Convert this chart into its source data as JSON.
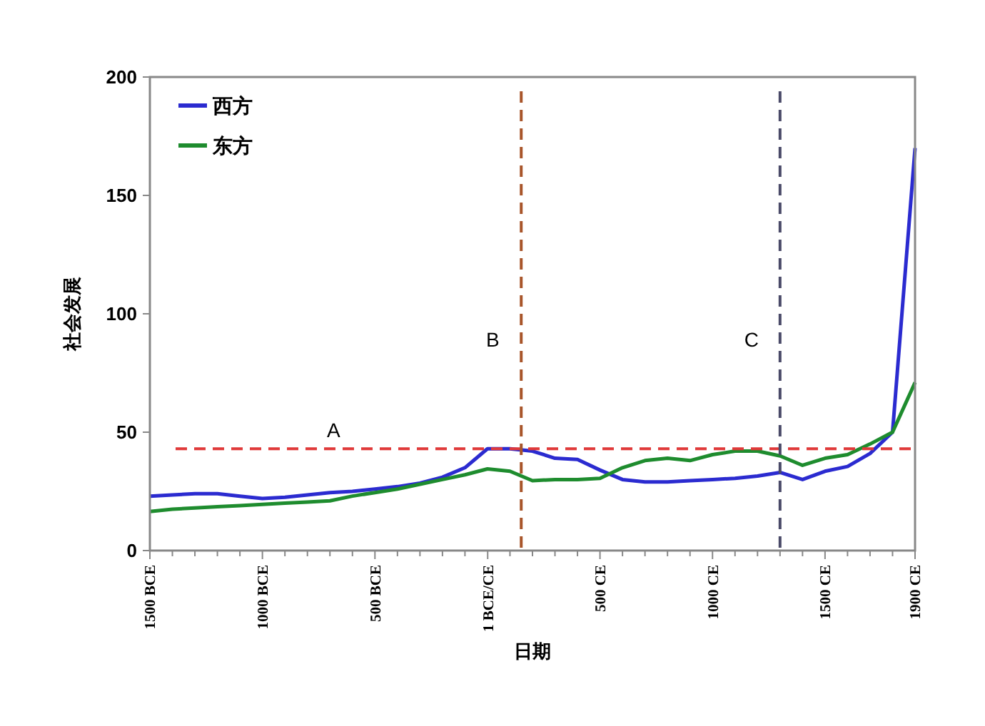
{
  "chart_data": {
    "type": "line",
    "xlabel": "日期",
    "ylabel": "社会发展",
    "x": [
      -1500,
      -1400,
      -1300,
      -1200,
      -1100,
      -1000,
      -900,
      -800,
      -700,
      -600,
      -500,
      -400,
      -300,
      -200,
      -100,
      0,
      100,
      200,
      300,
      400,
      500,
      600,
      700,
      800,
      900,
      1000,
      1100,
      1200,
      1300,
      1400,
      1500,
      1600,
      1700,
      1800,
      1900
    ],
    "series": [
      {
        "name": "西方",
        "color": "#2b2bd0",
        "values": [
          23,
          23.5,
          24,
          24,
          23,
          22,
          22.5,
          23.5,
          24.5,
          25,
          26,
          27,
          28.5,
          31,
          35,
          43,
          43,
          42,
          39,
          38.5,
          34,
          30,
          29,
          29,
          29.5,
          30,
          30.5,
          31.5,
          33,
          30,
          33.5,
          35.5,
          41,
          50,
          170
        ]
      },
      {
        "name": "东方",
        "color": "#1e8c2e",
        "values": [
          16.5,
          17.5,
          18,
          18.5,
          19,
          19.5,
          20,
          20.5,
          21,
          23,
          24.5,
          26,
          28,
          30,
          32,
          34.5,
          33.5,
          29.5,
          30,
          30,
          30.5,
          35,
          38,
          39,
          38,
          40.5,
          42,
          42,
          40,
          36,
          39,
          40.5,
          45,
          50,
          71
        ]
      }
    ],
    "xlim": [
      -1500,
      1900
    ],
    "xticks": [
      {
        "value": -1500,
        "label": "1500 BCE"
      },
      {
        "value": -1400,
        "label": null
      },
      {
        "value": -1300,
        "label": null
      },
      {
        "value": -1200,
        "label": null
      },
      {
        "value": -1100,
        "label": null
      },
      {
        "value": -1000,
        "label": "1000 BCE"
      },
      {
        "value": -900,
        "label": null
      },
      {
        "value": -800,
        "label": null
      },
      {
        "value": -700,
        "label": null
      },
      {
        "value": -600,
        "label": null
      },
      {
        "value": -500,
        "label": "500 BCE"
      },
      {
        "value": -400,
        "label": null
      },
      {
        "value": -300,
        "label": null
      },
      {
        "value": -200,
        "label": null
      },
      {
        "value": -100,
        "label": null
      },
      {
        "value": 1,
        "label": "1 BCE/CE"
      },
      {
        "value": 100,
        "label": null
      },
      {
        "value": 200,
        "label": null
      },
      {
        "value": 300,
        "label": null
      },
      {
        "value": 400,
        "label": null
      },
      {
        "value": 500,
        "label": "500 CE"
      },
      {
        "value": 600,
        "label": null
      },
      {
        "value": 700,
        "label": null
      },
      {
        "value": 800,
        "label": null
      },
      {
        "value": 900,
        "label": null
      },
      {
        "value": 1000,
        "label": "1000 CE"
      },
      {
        "value": 1100,
        "label": null
      },
      {
        "value": 1200,
        "label": null
      },
      {
        "value": 1300,
        "label": null
      },
      {
        "value": 1400,
        "label": null
      },
      {
        "value": 1500,
        "label": "1500 CE"
      },
      {
        "value": 1600,
        "label": null
      },
      {
        "value": 1700,
        "label": null
      },
      {
        "value": 1800,
        "label": null
      },
      {
        "value": 1900,
        "label": "1900 CE"
      }
    ],
    "ylim": [
      0,
      200
    ],
    "yticks": [
      0,
      50,
      100,
      150,
      200
    ],
    "ref_lines": [
      {
        "axis": "y",
        "value": 43,
        "label": "A",
        "color": "#e03a3a",
        "line_style": "dashed"
      },
      {
        "axis": "x",
        "value": 150,
        "label": "B",
        "color": "#a8552a",
        "line_style": "dashed"
      },
      {
        "axis": "x",
        "value": 1300,
        "label": "C",
        "color": "#4a4a68",
        "line_style": "dashed"
      }
    ],
    "legend": "top left",
    "grid": false,
    "marker": "none",
    "line_style": "solid"
  }
}
